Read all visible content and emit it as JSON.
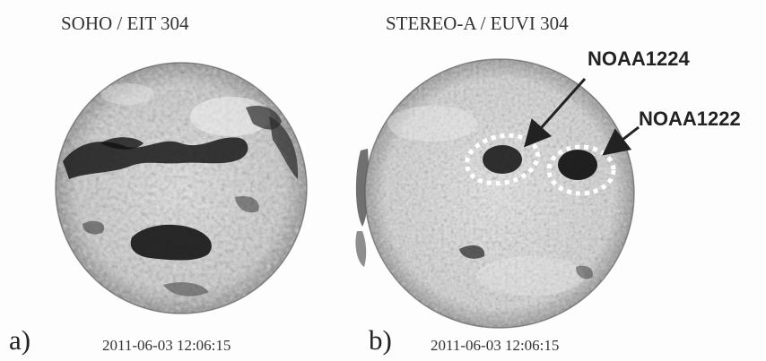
{
  "panels": [
    {
      "title": "SOHO / EIT 304",
      "label": "a)",
      "timestamp": "2011-06-03 12:06:15"
    },
    {
      "title": "STEREO-A / EUVI 304",
      "label": "b)",
      "timestamp": "2011-06-03 12:06:15",
      "annotations": [
        {
          "text": "NOAA1224"
        },
        {
          "text": "NOAA1222"
        }
      ]
    }
  ]
}
